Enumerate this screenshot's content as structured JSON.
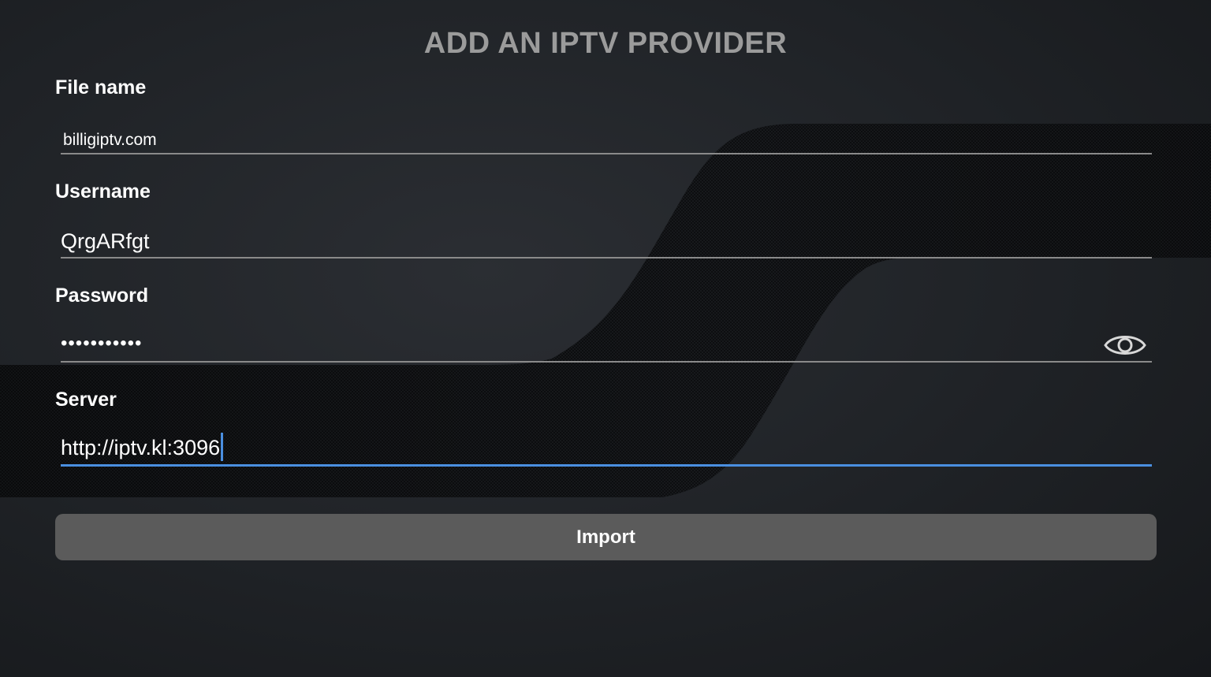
{
  "header": {
    "title": "ADD AN IPTV PROVIDER"
  },
  "form": {
    "file_name": {
      "label": "File name",
      "value": "billigiptv.com"
    },
    "username": {
      "label": "Username",
      "value": "QrgARfgt"
    },
    "password": {
      "label": "Password",
      "value": "•••••••••••",
      "toggle_icon": "eye-icon"
    },
    "server": {
      "label": "Server",
      "value": "http://iptv.kl:3096"
    }
  },
  "actions": {
    "import_label": "Import"
  },
  "colors": {
    "background": "#1f2226",
    "title": "#9b9b9b",
    "underline": "#8a8a8a",
    "active_underline": "#4a8fe0",
    "button": "#5b5b5b"
  }
}
